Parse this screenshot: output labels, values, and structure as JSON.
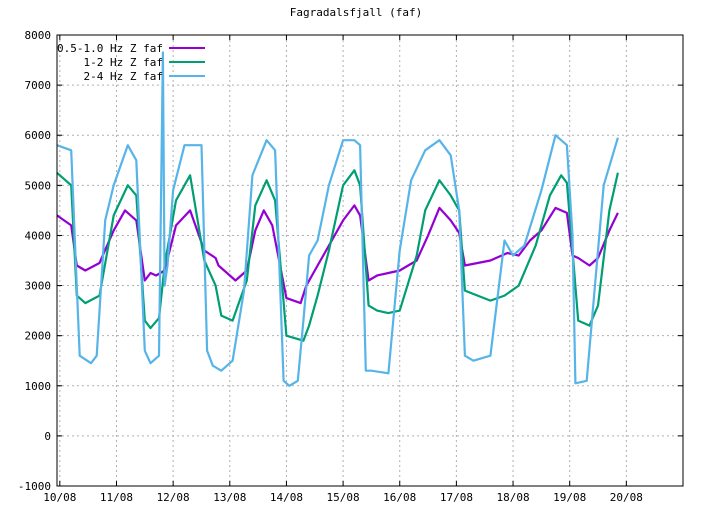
{
  "chart_data": {
    "type": "line",
    "title": "Fagradalsfjall (faf)",
    "xlabel": "",
    "ylabel": "",
    "ylim": [
      -1000,
      8000
    ],
    "yticks": [
      -1000,
      0,
      1000,
      2000,
      3000,
      4000,
      5000,
      6000,
      7000,
      8000
    ],
    "xlim": [
      -0.05,
      11.0
    ],
    "xticks": [
      0,
      1,
      2,
      3,
      4,
      5,
      6,
      7,
      8,
      9,
      10
    ],
    "xticklabels": [
      "10/08",
      "11/08",
      "12/08",
      "13/08",
      "14/08",
      "15/08",
      "16/08",
      "17/08",
      "18/08",
      "19/08",
      "20/08"
    ],
    "grid": true,
    "legend_position": "top-left",
    "series": [
      {
        "name": "0.5-1.0 Hz Z faf",
        "color": "#9400d3",
        "x": [
          -0.05,
          0.2,
          0.3,
          0.45,
          0.7,
          0.95,
          1.15,
          1.35,
          1.5,
          1.6,
          1.7,
          1.85,
          2.05,
          2.3,
          2.55,
          2.75,
          2.8,
          3.1,
          3.3,
          3.45,
          3.6,
          3.75,
          4.0,
          4.25,
          4.35,
          4.5,
          4.7,
          5.0,
          5.2,
          5.3,
          5.45,
          5.6,
          5.8,
          6.0,
          6.3,
          6.5,
          6.7,
          6.9,
          7.05,
          7.15,
          7.6,
          7.9,
          8.1,
          8.3,
          8.5,
          8.75,
          8.95,
          9.05,
          9.15,
          9.35,
          9.5,
          9.7,
          9.85
        ],
        "y": [
          4400,
          4200,
          3400,
          3300,
          3450,
          4100,
          4500,
          4300,
          3100,
          3250,
          3200,
          3300,
          4200,
          4500,
          3700,
          3550,
          3400,
          3100,
          3300,
          4100,
          4500,
          4200,
          2750,
          2650,
          3000,
          3300,
          3700,
          4300,
          4600,
          4400,
          3100,
          3200,
          3250,
          3300,
          3500,
          4000,
          4550,
          4300,
          4050,
          3400,
          3500,
          3650,
          3600,
          3900,
          4100,
          4550,
          4450,
          3600,
          3550,
          3400,
          3550,
          4100,
          4450
        ]
      },
      {
        "name": "1-2 Hz Z faf",
        "color": "#009e73",
        "x": [
          -0.05,
          0.2,
          0.3,
          0.45,
          0.7,
          0.95,
          1.2,
          1.35,
          1.5,
          1.6,
          1.75,
          1.85,
          2.05,
          2.3,
          2.55,
          2.75,
          2.85,
          3.05,
          3.3,
          3.45,
          3.65,
          3.8,
          4.0,
          4.3,
          4.4,
          4.55,
          4.75,
          5.0,
          5.2,
          5.3,
          5.45,
          5.6,
          5.8,
          6.0,
          6.3,
          6.45,
          6.7,
          6.9,
          7.05,
          7.15,
          7.6,
          7.85,
          8.1,
          8.4,
          8.65,
          8.85,
          8.95,
          9.05,
          9.15,
          9.35,
          9.5,
          9.7,
          9.85
        ],
        "y": [
          5250,
          5000,
          2800,
          2650,
          2800,
          4400,
          5000,
          4800,
          2300,
          2150,
          2350,
          3400,
          4700,
          5200,
          3500,
          3000,
          2400,
          2300,
          3100,
          4600,
          5100,
          4700,
          2000,
          1900,
          2200,
          2800,
          3700,
          5000,
          5300,
          5000,
          2600,
          2500,
          2450,
          2500,
          3600,
          4500,
          5100,
          4800,
          4500,
          2900,
          2700,
          2800,
          3000,
          3800,
          4800,
          5200,
          5050,
          3700,
          2300,
          2200,
          2600,
          4500,
          5250
        ]
      },
      {
        "name": "2-4 Hz Z faf",
        "color": "#56b4e9",
        "x": [
          -0.05,
          0.2,
          0.28,
          0.35,
          0.55,
          0.65,
          0.8,
          0.95,
          1.2,
          1.35,
          1.5,
          1.6,
          1.75,
          1.82,
          1.85,
          1.9,
          2.0,
          2.2,
          2.5,
          2.6,
          2.7,
          2.85,
          3.05,
          3.25,
          3.4,
          3.65,
          3.8,
          3.95,
          4.05,
          4.2,
          4.3,
          4.4,
          4.55,
          4.75,
          5.0,
          5.2,
          5.3,
          5.4,
          5.5,
          5.8,
          6.0,
          6.2,
          6.45,
          6.7,
          6.9,
          7.05,
          7.15,
          7.3,
          7.6,
          7.85,
          8.0,
          8.2,
          8.5,
          8.75,
          8.95,
          9.05,
          9.1,
          9.3,
          9.5,
          9.6,
          9.85
        ],
        "y": [
          5800,
          5700,
          3500,
          1600,
          1450,
          1600,
          4300,
          5000,
          5800,
          5500,
          1700,
          1450,
          1600,
          7650,
          3000,
          3400,
          4900,
          5800,
          5800,
          1700,
          1400,
          1300,
          1500,
          2900,
          5200,
          5900,
          5700,
          1100,
          1000,
          1100,
          2300,
          3600,
          3900,
          5000,
          5900,
          5900,
          5800,
          1300,
          1300,
          1250,
          3700,
          5100,
          5700,
          5900,
          5600,
          4500,
          1600,
          1500,
          1600,
          3900,
          3600,
          3800,
          4900,
          6000,
          5800,
          4000,
          1050,
          1100,
          3700,
          5000,
          5950
        ]
      }
    ]
  }
}
